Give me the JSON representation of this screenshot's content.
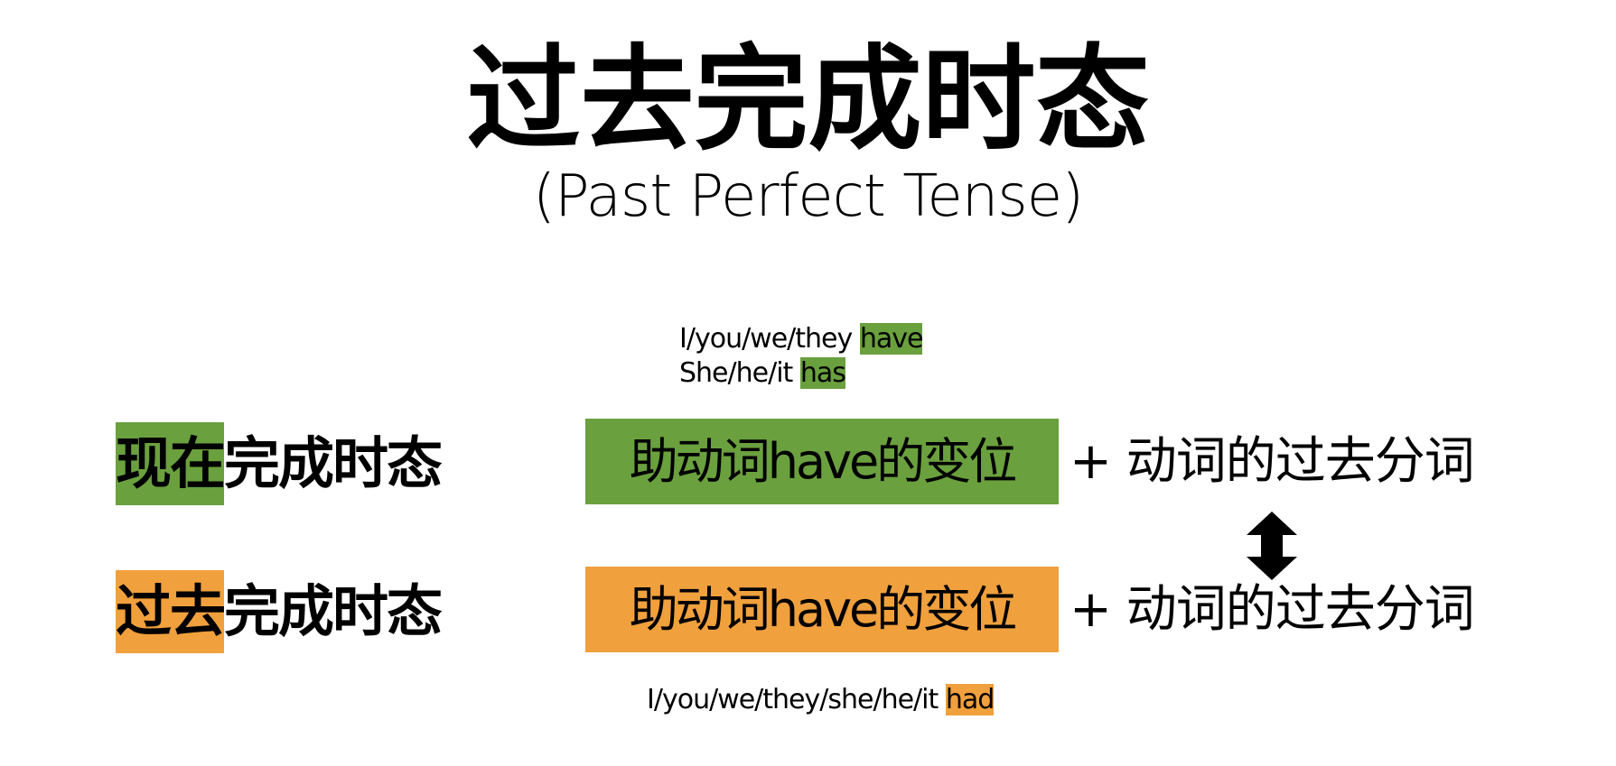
{
  "title": "过去完成时态",
  "subtitle": "(Past Perfect Tense)",
  "present_forms": {
    "line1_prefix": "I/you/we/they ",
    "line1_aux": "have",
    "line2_prefix": "She/he/it ",
    "line2_aux": "has"
  },
  "present": {
    "label_highlight": "现在",
    "label_rest": "完成时态",
    "aux_box": "助动词have的变位",
    "formula_rest": "+ 动词的过去分词"
  },
  "past": {
    "label_highlight": "过去",
    "label_rest": "完成时态",
    "aux_box": "助动词have的变位",
    "formula_rest": "+ 动词的过去分词"
  },
  "past_forms": {
    "prefix": "I/you/we/they/she/he/it ",
    "aux": "had"
  },
  "colors": {
    "present_highlight": "#6aa03e",
    "past_highlight": "#f0a03c",
    "arrow": "#000000"
  },
  "icons": {
    "compare_arrow": "double-vertical-arrow-icon"
  }
}
